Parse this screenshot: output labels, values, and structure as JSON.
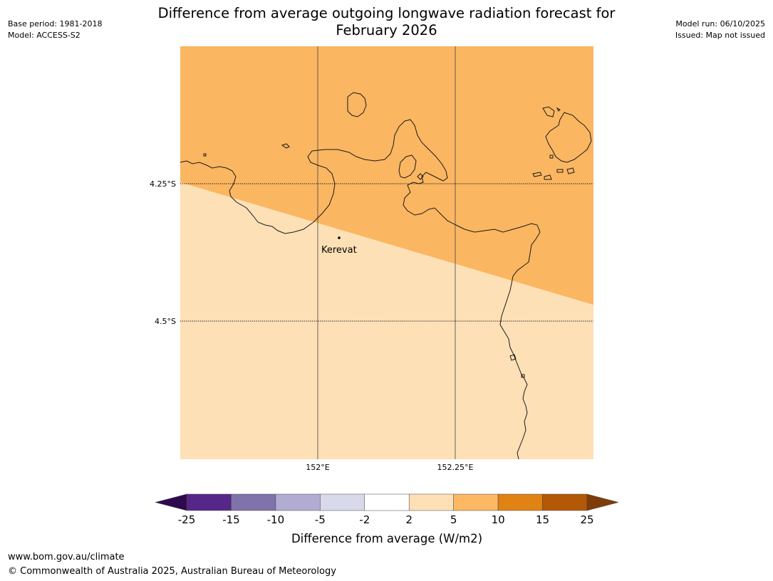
{
  "header": {
    "title_line1": "Difference from average outgoing longwave radiation forecast for",
    "title_line2": "February 2026",
    "base_period": "Base period: 1981-2018",
    "model": "Model: ACCESS-S2",
    "model_run": "Model run: 06/10/2025",
    "issued": "Issued: Map not issued"
  },
  "map": {
    "latitude_labels": [
      "4.25°S",
      "4.5°S"
    ],
    "longitude_labels": [
      "152°E",
      "152.25°E"
    ],
    "place": {
      "name": "Kerevat"
    },
    "fill_colors": {
      "band_10_15": "#fbb661",
      "band_5_10": "#fde0b6"
    }
  },
  "colorbar": {
    "title": "Difference from average (W/m2)",
    "ticks": [
      "-25",
      "-15",
      "-10",
      "-5",
      "-2",
      "2",
      "5",
      "10",
      "15",
      "25"
    ],
    "under_color": "#2d0a4e",
    "over_color": "#7f3b08",
    "colors": [
      "#542788",
      "#8073ac",
      "#b2abd2",
      "#d8daeb",
      "#ffffff",
      "#fee0b6",
      "#fdb863",
      "#e08214",
      "#b35806"
    ]
  },
  "footer": {
    "website": "www.bom.gov.au/climate",
    "copyright": "© Commonwealth of Australia 2025, Australian Bureau of Meteorology"
  }
}
